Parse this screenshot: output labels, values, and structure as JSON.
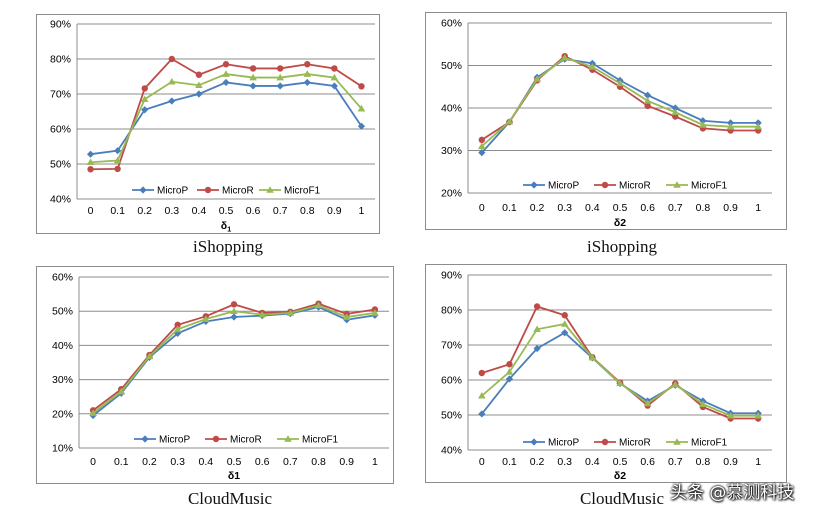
{
  "colors": {
    "MicroP": "#4A7EBB",
    "MicroR": "#BE4B48",
    "MicroF1": "#98B954",
    "grid": "#8c8c8c",
    "axis_text": "#000000"
  },
  "markers": {
    "MicroP": "diamond",
    "MicroR": "circle",
    "MicroF1": "triangle"
  },
  "captions": [
    "iShopping",
    "iShopping",
    "CloudMusic",
    "CloudMusic"
  ],
  "watermark": "头条 @慕测科技",
  "chart_data": [
    {
      "type": "line",
      "caption": "iShopping",
      "xlabel": "δ",
      "xlabel_sub": "1",
      "ylabel": "",
      "x": [
        "0",
        "0.1",
        "0.2",
        "0.3",
        "0.4",
        "0.5",
        "0.6",
        "0.7",
        "0.8",
        "0.9",
        "1"
      ],
      "ylim": [
        40,
        90
      ],
      "yticks": [
        40,
        50,
        60,
        70,
        80,
        90
      ],
      "ytick_labels": [
        "40%",
        "50%",
        "60%",
        "70%",
        "80%",
        "90%"
      ],
      "grid": true,
      "legend": "bottom",
      "series": [
        {
          "name": "MicroP",
          "values": [
            52.8,
            53.8,
            65.5,
            68.0,
            70.0,
            73.3,
            72.3,
            72.3,
            73.3,
            72.3,
            60.8
          ]
        },
        {
          "name": "MicroR",
          "values": [
            48.5,
            48.6,
            71.6,
            80.0,
            75.5,
            78.5,
            77.3,
            77.3,
            78.5,
            77.3,
            72.2
          ]
        },
        {
          "name": "MicroF1",
          "values": [
            50.5,
            51.0,
            68.5,
            73.5,
            72.5,
            75.7,
            74.7,
            74.7,
            75.7,
            74.7,
            65.8
          ]
        }
      ]
    },
    {
      "type": "line",
      "caption": "iShopping",
      "xlabel": "δ2",
      "xlabel_sub": "",
      "ylabel": "",
      "x": [
        "0",
        "0.1",
        "0.2",
        "0.3",
        "0.4",
        "0.5",
        "0.6",
        "0.7",
        "0.8",
        "0.9",
        "1"
      ],
      "ylim": [
        20,
        60
      ],
      "yticks": [
        20,
        30,
        40,
        50,
        60
      ],
      "ytick_labels": [
        "20%",
        "30%",
        "40%",
        "50%",
        "60%"
      ],
      "grid": true,
      "legend": "bottom",
      "series": [
        {
          "name": "MicroP",
          "values": [
            29.5,
            36.7,
            47.2,
            51.5,
            50.5,
            46.5,
            43.0,
            40.0,
            37.0,
            36.5,
            36.5
          ]
        },
        {
          "name": "MicroR",
          "values": [
            32.5,
            36.7,
            46.5,
            52.2,
            49.0,
            45.0,
            40.5,
            38.0,
            35.2,
            34.7,
            34.7
          ]
        },
        {
          "name": "MicroF1",
          "values": [
            31.0,
            36.8,
            46.8,
            51.8,
            49.7,
            45.8,
            41.7,
            39.0,
            36.0,
            35.6,
            35.6
          ]
        }
      ]
    },
    {
      "type": "line",
      "caption": "CloudMusic",
      "xlabel": "δ1",
      "xlabel_sub": "",
      "ylabel": "",
      "x": [
        "0",
        "0.1",
        "0.2",
        "0.3",
        "0.4",
        "0.5",
        "0.6",
        "0.7",
        "0.8",
        "0.9",
        "1"
      ],
      "ylim": [
        10,
        60
      ],
      "yticks": [
        10,
        20,
        30,
        40,
        50,
        60
      ],
      "ytick_labels": [
        "10%",
        "20%",
        "30%",
        "40%",
        "50%",
        "60%"
      ],
      "grid": true,
      "legend": "bottom",
      "series": [
        {
          "name": "MicroP",
          "values": [
            19.5,
            26.0,
            36.5,
            43.5,
            47.0,
            48.3,
            48.7,
            49.3,
            51.2,
            47.5,
            48.8
          ]
        },
        {
          "name": "MicroR",
          "values": [
            21.0,
            27.2,
            37.2,
            46.0,
            48.5,
            52.0,
            49.5,
            49.8,
            52.2,
            49.2,
            50.5
          ]
        },
        {
          "name": "MicroF1",
          "values": [
            20.2,
            26.5,
            36.8,
            44.7,
            47.7,
            50.0,
            49.0,
            49.5,
            51.7,
            48.3,
            49.5
          ]
        }
      ]
    },
    {
      "type": "line",
      "caption": "CloudMusic",
      "xlabel": "δ2",
      "xlabel_sub": "",
      "ylabel": "",
      "x": [
        "0",
        "0.1",
        "0.2",
        "0.3",
        "0.4",
        "0.5",
        "0.6",
        "0.7",
        "0.8",
        "0.9",
        "1"
      ],
      "ylim": [
        40,
        90
      ],
      "yticks": [
        40,
        50,
        60,
        70,
        80,
        90
      ],
      "ytick_labels": [
        "40%",
        "50%",
        "60%",
        "70%",
        "80%",
        "90%"
      ],
      "grid": true,
      "legend": "bottom",
      "series": [
        {
          "name": "MicroP",
          "values": [
            50.3,
            60.3,
            69.0,
            73.5,
            66.3,
            59.0,
            54.0,
            58.5,
            54.0,
            50.5,
            50.5
          ]
        },
        {
          "name": "MicroR",
          "values": [
            62.0,
            64.5,
            81.0,
            78.5,
            66.5,
            59.3,
            52.7,
            59.0,
            52.3,
            49.0,
            49.0
          ]
        },
        {
          "name": "MicroF1",
          "values": [
            55.5,
            62.3,
            74.5,
            76.0,
            66.4,
            59.1,
            53.3,
            58.7,
            53.1,
            49.8,
            49.8
          ]
        }
      ]
    }
  ]
}
